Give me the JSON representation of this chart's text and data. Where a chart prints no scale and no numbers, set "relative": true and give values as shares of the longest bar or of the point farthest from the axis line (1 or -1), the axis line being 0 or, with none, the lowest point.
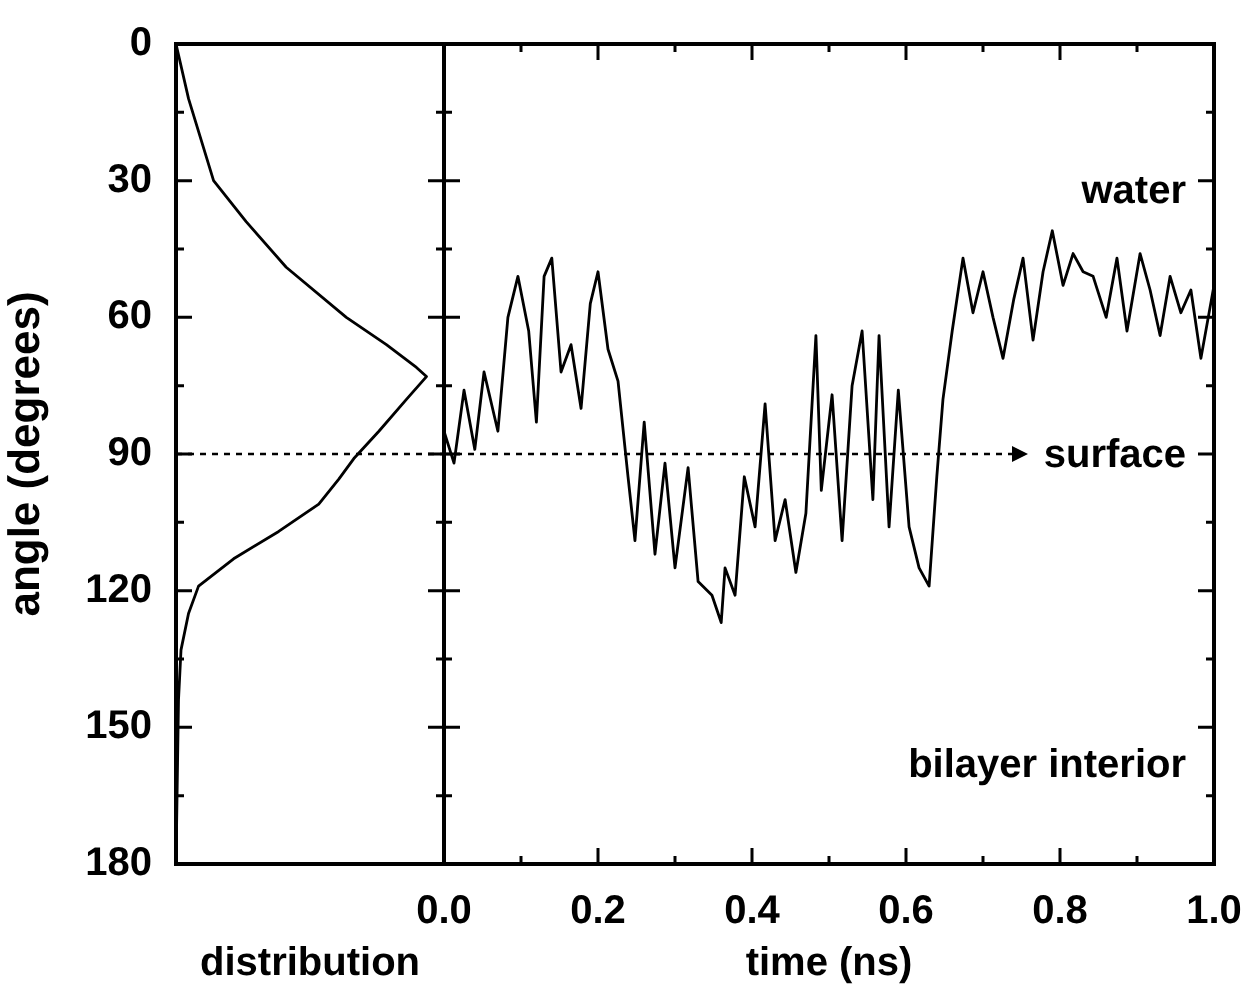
{
  "chart_data": [
    {
      "type": "line",
      "orientation": "horizontal",
      "xlabel": "distribution",
      "ylabel": "angle (degrees)",
      "relative": true,
      "tick_labels": "y",
      "marker": "none",
      "ylim": [
        180,
        0
      ],
      "yticks": [
        0,
        {
          "value": 15,
          "label": null
        },
        30,
        {
          "value": 45,
          "label": null
        },
        60,
        {
          "value": 75,
          "label": null
        },
        90,
        {
          "value": 105,
          "label": null
        },
        120,
        {
          "value": 135,
          "label": null
        },
        150,
        {
          "value": 165,
          "label": null
        },
        180
      ],
      "series": [
        {
          "color": "#000000",
          "x": [
            0,
            12,
            30,
            39,
            49,
            60,
            66,
            71,
            73,
            78,
            85,
            91,
            95.5,
            101,
            107,
            113,
            119,
            125,
            133,
            144,
            180
          ],
          "values": [
            0,
            0.05,
            0.15,
            0.28,
            0.44,
            0.68,
            0.84,
            0.96,
            1,
            0.92,
            0.81,
            0.71,
            0.65,
            0.57,
            0.41,
            0.23,
            0.09,
            0.05,
            0.02,
            0.01,
            0
          ]
        }
      ],
      "ref_lines": [
        {
          "axis": "y",
          "value": 90,
          "line_style": "dotted",
          "color": "#000000"
        }
      ]
    },
    {
      "type": "line",
      "xlabel": "time (ns)",
      "tick_labels": "x",
      "marker": "none",
      "xlim": [
        0,
        1
      ],
      "xticks": [
        {
          "value": 0,
          "label": "0.0"
        },
        {
          "value": 0.1,
          "label": null
        },
        0.2,
        {
          "value": 0.3,
          "label": null
        },
        0.4,
        {
          "value": 0.5,
          "label": null
        },
        0.6,
        {
          "value": 0.7,
          "label": null
        },
        0.8,
        {
          "value": 0.9,
          "label": null
        },
        {
          "value": 1,
          "label": "1.0"
        }
      ],
      "ylim": [
        180,
        0
      ],
      "yticks": [
        0,
        {
          "value": 15,
          "label": null
        },
        30,
        {
          "value": 45,
          "label": null
        },
        60,
        {
          "value": 75,
          "label": null
        },
        90,
        {
          "value": 105,
          "label": null
        },
        120,
        {
          "value": 135,
          "label": null
        },
        150,
        {
          "value": 165,
          "label": null
        },
        180
      ],
      "series": [
        {
          "color": "#000000",
          "x": [
            0,
            0.013,
            0.026,
            0.04,
            0.052,
            0.07,
            0.083,
            0.096,
            0.11,
            0.12,
            0.13,
            0.14,
            0.152,
            0.165,
            0.178,
            0.19,
            0.2,
            0.213,
            0.226,
            0.239,
            0.248,
            0.26,
            0.274,
            0.287,
            0.3,
            0.317,
            0.33,
            0.348,
            0.36,
            0.365,
            0.378,
            0.39,
            0.404,
            0.417,
            0.43,
            0.443,
            0.457,
            0.47,
            0.483,
            0.49,
            0.504,
            0.517,
            0.53,
            0.543,
            0.557,
            0.565,
            0.578,
            0.59,
            0.604,
            0.617,
            0.63,
            0.64,
            0.648,
            0.66,
            0.674,
            0.687,
            0.7,
            0.713,
            0.726,
            0.74,
            0.752,
            0.765,
            0.778,
            0.79,
            0.804,
            0.817,
            0.83,
            0.843,
            0.86,
            0.874,
            0.887,
            0.904,
            0.917,
            0.93,
            0.943,
            0.957,
            0.97,
            0.983,
            1
          ],
          "values": [
            85,
            92,
            76,
            89,
            72,
            85,
            60,
            51,
            63,
            83,
            51,
            47,
            72,
            66,
            80,
            57,
            50,
            67,
            74,
            95,
            109,
            83,
            112,
            92,
            115,
            93,
            118,
            121,
            127,
            115,
            121,
            95,
            106,
            79,
            109,
            100,
            116,
            103,
            64,
            98,
            77,
            109,
            75,
            63,
            100,
            64,
            106,
            76,
            106,
            115,
            119,
            95,
            78,
            63,
            47,
            59,
            50,
            60,
            69,
            56,
            47,
            65,
            50,
            41,
            53,
            46,
            50,
            51,
            60,
            47,
            63,
            46,
            54,
            64,
            51,
            59,
            54,
            69,
            53
          ]
        }
      ],
      "ref_lines": [
        {
          "axis": "y",
          "value": 90,
          "label": "surface",
          "line_style": "dotted",
          "color": "#000000"
        }
      ],
      "annotations": [
        "water",
        "bilayer interior"
      ]
    }
  ]
}
